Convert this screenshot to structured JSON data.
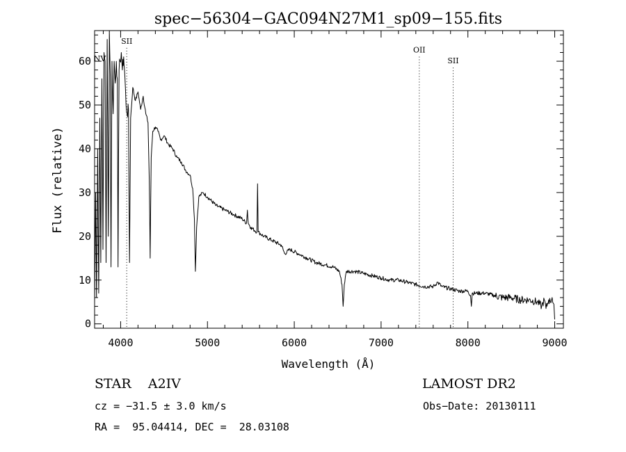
{
  "chart_data": {
    "type": "line",
    "title": "spec−56304−GAC094N27M1_sp09−155.fits",
    "xlabel": "Wavelength (Å)",
    "ylabel": "Flux (relative)",
    "xlim": [
      3700,
      9100
    ],
    "ylim": [
      -1,
      67
    ],
    "xticks": [
      4000,
      5000,
      6000,
      7000,
      8000,
      9000
    ],
    "yticks": [
      0,
      10,
      20,
      30,
      40,
      50,
      60
    ],
    "grid": false,
    "series": [
      {
        "values": [
          [
            3700,
            5
          ],
          [
            3712,
            30
          ],
          [
            3722,
            6
          ],
          [
            3735,
            40
          ],
          [
            3747,
            7
          ],
          [
            3760,
            47
          ],
          [
            3771,
            14
          ],
          [
            3784,
            56
          ],
          [
            3796,
            17
          ],
          [
            3808,
            62
          ],
          [
            3821,
            60
          ],
          [
            3832,
            14
          ],
          [
            3845,
            65
          ],
          [
            3858,
            20
          ],
          [
            3870,
            67
          ],
          [
            3880,
            57
          ],
          [
            3889,
            13
          ],
          [
            3900,
            60
          ],
          [
            3914,
            48
          ],
          [
            3925,
            60
          ],
          [
            3938,
            55
          ],
          [
            3950,
            60
          ],
          [
            3962,
            56
          ],
          [
            3970,
            13
          ],
          [
            3982,
            58
          ],
          [
            3995,
            60
          ],
          [
            4008,
            62
          ],
          [
            4020,
            58
          ],
          [
            4035,
            61
          ],
          [
            4050,
            56
          ],
          [
            4062,
            50
          ],
          [
            4075,
            48
          ],
          [
            4090,
            49
          ],
          [
            4102,
            14
          ],
          [
            4115,
            47
          ],
          [
            4140,
            54
          ],
          [
            4170,
            51
          ],
          [
            4200,
            53
          ],
          [
            4230,
            49
          ],
          [
            4260,
            52
          ],
          [
            4290,
            48
          ],
          [
            4315,
            46
          ],
          [
            4330,
            33
          ],
          [
            4340,
            15
          ],
          [
            4352,
            38
          ],
          [
            4370,
            44
          ],
          [
            4400,
            45
          ],
          [
            4430,
            44
          ],
          [
            4460,
            42
          ],
          [
            4500,
            43
          ],
          [
            4550,
            41
          ],
          [
            4600,
            40
          ],
          [
            4650,
            38
          ],
          [
            4700,
            37
          ],
          [
            4750,
            35
          ],
          [
            4800,
            34
          ],
          [
            4830,
            31
          ],
          [
            4850,
            24
          ],
          [
            4861,
            12
          ],
          [
            4875,
            22
          ],
          [
            4900,
            29
          ],
          [
            4950,
            30
          ],
          [
            5000,
            29
          ],
          [
            5100,
            27
          ],
          [
            5200,
            26
          ],
          [
            5300,
            25
          ],
          [
            5400,
            24
          ],
          [
            5450,
            23
          ],
          [
            5460,
            26
          ],
          [
            5470,
            23
          ],
          [
            5500,
            22
          ],
          [
            5570,
            21
          ],
          [
            5577,
            32
          ],
          [
            5584,
            21
          ],
          [
            5650,
            20
          ],
          [
            5750,
            19
          ],
          [
            5850,
            18
          ],
          [
            5890,
            16
          ],
          [
            5950,
            17
          ],
          [
            6050,
            16
          ],
          [
            6150,
            15
          ],
          [
            6250,
            14
          ],
          [
            6350,
            13.5
          ],
          [
            6450,
            13
          ],
          [
            6520,
            12
          ],
          [
            6550,
            9
          ],
          [
            6563,
            4
          ],
          [
            6576,
            9
          ],
          [
            6600,
            12
          ],
          [
            6700,
            12
          ],
          [
            6800,
            11.5
          ],
          [
            6900,
            11
          ],
          [
            7000,
            10.5
          ],
          [
            7100,
            10
          ],
          [
            7200,
            10
          ],
          [
            7300,
            9.5
          ],
          [
            7400,
            9
          ],
          [
            7500,
            8.5
          ],
          [
            7600,
            8.5
          ],
          [
            7650,
            9.5
          ],
          [
            7700,
            8.5
          ],
          [
            7800,
            8
          ],
          [
            7900,
            7.5
          ],
          [
            8000,
            7.5
          ],
          [
            8030,
            6.5
          ],
          [
            8040,
            4
          ],
          [
            8050,
            7
          ],
          [
            8100,
            7
          ],
          [
            8200,
            7
          ],
          [
            8300,
            6.5
          ],
          [
            8400,
            6
          ],
          [
            8500,
            6
          ],
          [
            8600,
            5.5
          ],
          [
            8700,
            5.5
          ],
          [
            8800,
            5
          ],
          [
            8850,
            4
          ],
          [
            8880,
            5.5
          ],
          [
            8900,
            3.5
          ],
          [
            8930,
            5.5
          ],
          [
            8950,
            5
          ],
          [
            8970,
            6
          ],
          [
            8990,
            4.5
          ],
          [
            9000,
            1
          ]
        ]
      }
    ],
    "annotations": [
      {
        "text": "NV",
        "x": 3760,
        "y": 60,
        "line": false
      },
      {
        "text": "SII",
        "x": 4070,
        "y": 64,
        "line": true
      },
      {
        "text": "OII",
        "x": 7440,
        "y": 62,
        "line": true
      },
      {
        "text": "SII",
        "x": 7830,
        "y": 59.5,
        "line": true
      }
    ]
  },
  "footer": {
    "object": "STAR",
    "subclass": "A2IV",
    "survey": "LAMOST DR2",
    "cz": "cz = −31.5 ± 3.0 km/s",
    "obs_date": "Obs−Date: 20130111",
    "radec": "RA =  95.04414, DEC =  28.03108"
  }
}
